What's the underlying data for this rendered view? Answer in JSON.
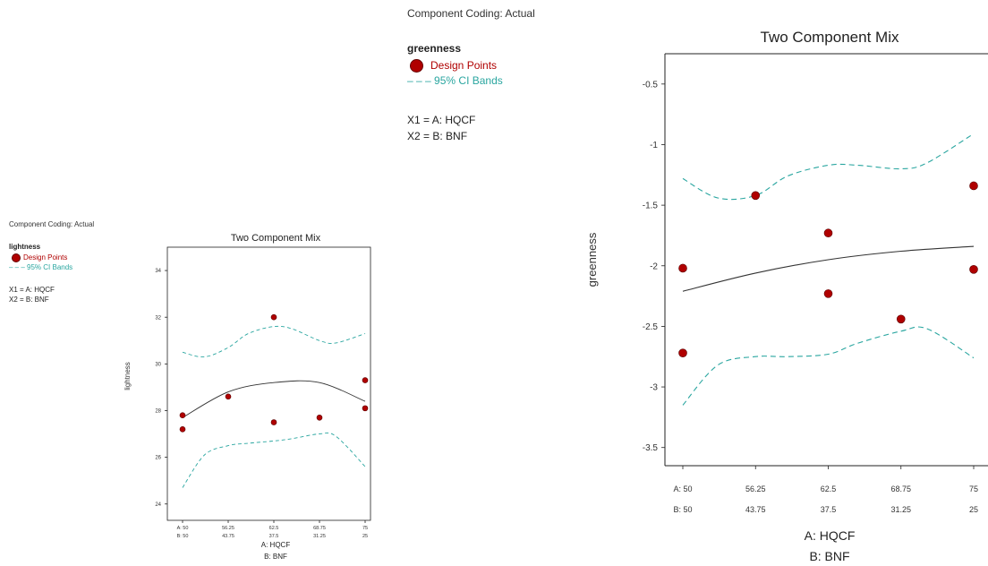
{
  "colors": {
    "point": "#b00000",
    "ci_band": "#2aa6a0",
    "fit_line": "#333333",
    "axis": "#222222"
  },
  "chart_data": [
    {
      "type": "line",
      "title": "Two Component Mix",
      "coding_note": "Component Coding: Actual",
      "response": "lightness",
      "legend": {
        "points": "Design Points",
        "band": "95% CI Bands"
      },
      "x1_def": "X1 = A: HQCF",
      "x2_def": "X2 = B: BNF",
      "xlabel_a": "A: HQCF",
      "xlabel_b": "B: BNF",
      "ylabel": "lightness",
      "a_ticks": [
        "A: 50",
        "56.25",
        "62.5",
        "68.75",
        "75"
      ],
      "b_ticks": [
        "B: 50",
        "43.75",
        "37.5",
        "31.25",
        "25"
      ],
      "x_values": [
        50,
        56.25,
        62.5,
        68.75,
        75
      ],
      "xlim": [
        50,
        75
      ],
      "ylim": [
        23.3,
        35
      ],
      "y_ticks": [
        24,
        26,
        28,
        30,
        32,
        34
      ],
      "design_points": [
        {
          "x": 50,
          "y": 27.8
        },
        {
          "x": 50,
          "y": 27.2
        },
        {
          "x": 56.25,
          "y": 28.6
        },
        {
          "x": 62.5,
          "y": 32.0
        },
        {
          "x": 62.5,
          "y": 27.5
        },
        {
          "x": 68.75,
          "y": 27.7
        },
        {
          "x": 75,
          "y": 29.3
        },
        {
          "x": 75,
          "y": 28.1
        }
      ],
      "fit": {
        "x": [
          50,
          56.25,
          62.5,
          68.75,
          75
        ],
        "y": [
          27.7,
          28.8,
          29.2,
          29.2,
          28.4
        ]
      },
      "ci_upper": {
        "x": [
          50,
          53,
          56.25,
          59,
          62.5,
          65,
          68.75,
          71,
          75
        ],
        "y": [
          30.5,
          30.3,
          30.7,
          31.3,
          31.6,
          31.5,
          31.0,
          30.9,
          31.3
        ]
      },
      "ci_lower": {
        "x": [
          50,
          53,
          56.25,
          59,
          62.5,
          65,
          68.75,
          71,
          75
        ],
        "y": [
          24.7,
          26.1,
          26.5,
          26.6,
          26.7,
          26.8,
          27.0,
          26.9,
          25.6
        ]
      }
    },
    {
      "type": "line",
      "title": "Two Component Mix",
      "coding_note": "Component Coding: Actual",
      "response": "greenness",
      "legend": {
        "points": "Design Points",
        "band": "95% CI Bands"
      },
      "x1_def": "X1 = A: HQCF",
      "x2_def": "X2 = B: BNF",
      "xlabel_a": "A: HQCF",
      "xlabel_b": "B: BNF",
      "ylabel": "greenness",
      "a_ticks": [
        "A: 50",
        "56.25",
        "62.5",
        "68.75",
        "75"
      ],
      "b_ticks": [
        "B: 50",
        "43.75",
        "37.5",
        "31.25",
        "25"
      ],
      "x_values": [
        50,
        56.25,
        62.5,
        68.75,
        75
      ],
      "xlim": [
        50,
        75
      ],
      "ylim": [
        -3.65,
        -0.25
      ],
      "y_ticks": [
        -0.5,
        -1,
        -1.5,
        -2,
        -2.5,
        -3,
        -3.5
      ],
      "design_points": [
        {
          "x": 50,
          "y": -2.02
        },
        {
          "x": 50,
          "y": -2.72
        },
        {
          "x": 56.25,
          "y": -1.42
        },
        {
          "x": 62.5,
          "y": -1.73
        },
        {
          "x": 62.5,
          "y": -2.23
        },
        {
          "x": 68.75,
          "y": -2.44
        },
        {
          "x": 75,
          "y": -1.34
        },
        {
          "x": 75,
          "y": -2.03
        }
      ],
      "fit": {
        "x": [
          50,
          56.25,
          62.5,
          68.75,
          75
        ],
        "y": [
          -2.21,
          -2.06,
          -1.95,
          -1.88,
          -1.84
        ]
      },
      "ci_upper": {
        "x": [
          50,
          53,
          56.25,
          59,
          62.5,
          65,
          68.75,
          71,
          75
        ],
        "y": [
          -1.28,
          -1.44,
          -1.42,
          -1.26,
          -1.17,
          -1.17,
          -1.2,
          -1.15,
          -0.91
        ]
      },
      "ci_lower": {
        "x": [
          50,
          53,
          56.25,
          59,
          62.5,
          65,
          68.75,
          71,
          75
        ],
        "y": [
          -3.15,
          -2.82,
          -2.75,
          -2.75,
          -2.73,
          -2.64,
          -2.54,
          -2.52,
          -2.76
        ]
      }
    }
  ]
}
